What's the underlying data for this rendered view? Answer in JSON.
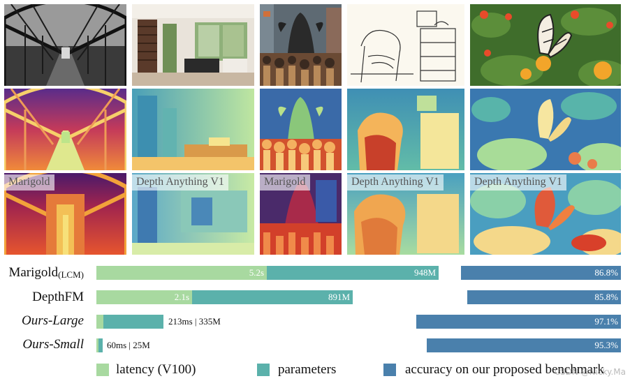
{
  "image_labels": [
    "Marigold",
    "Depth Anything V1",
    "Marigold",
    "Depth Anything V1",
    "Depth Anything V1"
  ],
  "chart_data": {
    "type": "bar",
    "categories": [
      "Marigold(LCM)",
      "DepthFM",
      "Ours-Large",
      "Ours-Small"
    ],
    "series": [
      {
        "name": "latency (V100)",
        "value_labels": [
          "5.2s",
          "2.1s",
          "213ms",
          "60ms"
        ]
      },
      {
        "name": "parameters",
        "value_labels": [
          "948M",
          "891M",
          "335M",
          "25M"
        ]
      },
      {
        "name": "accuracy on our proposed benchmark",
        "values": [
          86.8,
          85.8,
          97.1,
          95.3
        ],
        "value_labels": [
          "86.8%",
          "85.8%",
          "97.1%",
          "95.3%"
        ]
      }
    ],
    "latency_values_ms": [
      5200,
      2100,
      213,
      60
    ],
    "parameter_values_M": [
      948,
      891,
      335,
      25
    ]
  },
  "rows": [
    {
      "name_main": "Marigold",
      "name_sub": "(LCM)",
      "italic": false
    },
    {
      "name_main": "DepthFM",
      "name_sub": "",
      "italic": false
    },
    {
      "name_main": "Ours-Large",
      "name_sub": "",
      "italic": true
    },
    {
      "name_main": "Ours-Small",
      "name_sub": "",
      "italic": true
    }
  ],
  "small_value_texts": [
    "213ms | 335M",
    "60ms | 25M"
  ],
  "legend": [
    {
      "label": "latency (V100)",
      "color": "#a8d9a0"
    },
    {
      "label": "parameters",
      "color": "#5bb1ab"
    },
    {
      "label": "accuracy on our proposed benchmark",
      "color": "#4a80ac"
    }
  ],
  "watermark": "CSDN @Nicky.Ma"
}
